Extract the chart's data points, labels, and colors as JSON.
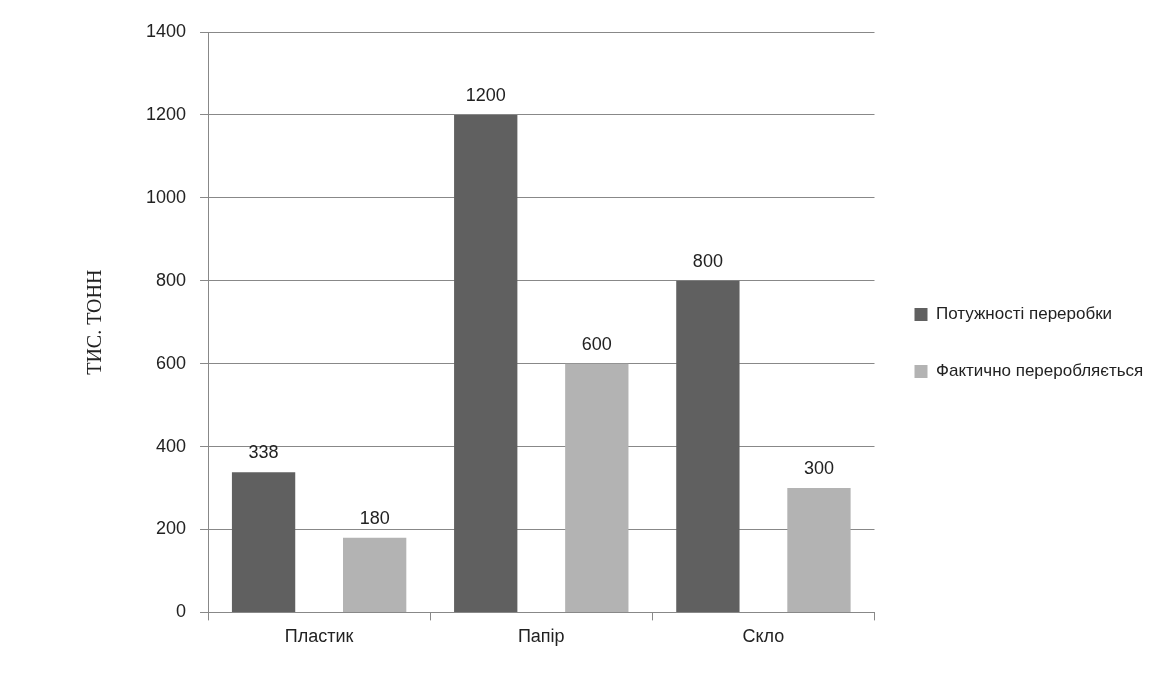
{
  "chart_data": {
    "type": "bar",
    "ylabel": "ТИС. ТОНН",
    "categories": [
      "Пластик",
      "Папір",
      "Скло"
    ],
    "series": [
      {
        "name": "Потужності переробки",
        "color": "#606060",
        "values": [
          338,
          1200,
          800
        ]
      },
      {
        "name": "Фактично переробляється",
        "color": "#b3b3b3",
        "values": [
          180,
          600,
          300
        ]
      }
    ],
    "ylim": [
      0,
      1400
    ],
    "yticks": [
      0,
      200,
      400,
      600,
      800,
      1000,
      1200,
      1400
    ],
    "grid": "y",
    "legend": "right",
    "data_labels": true
  }
}
